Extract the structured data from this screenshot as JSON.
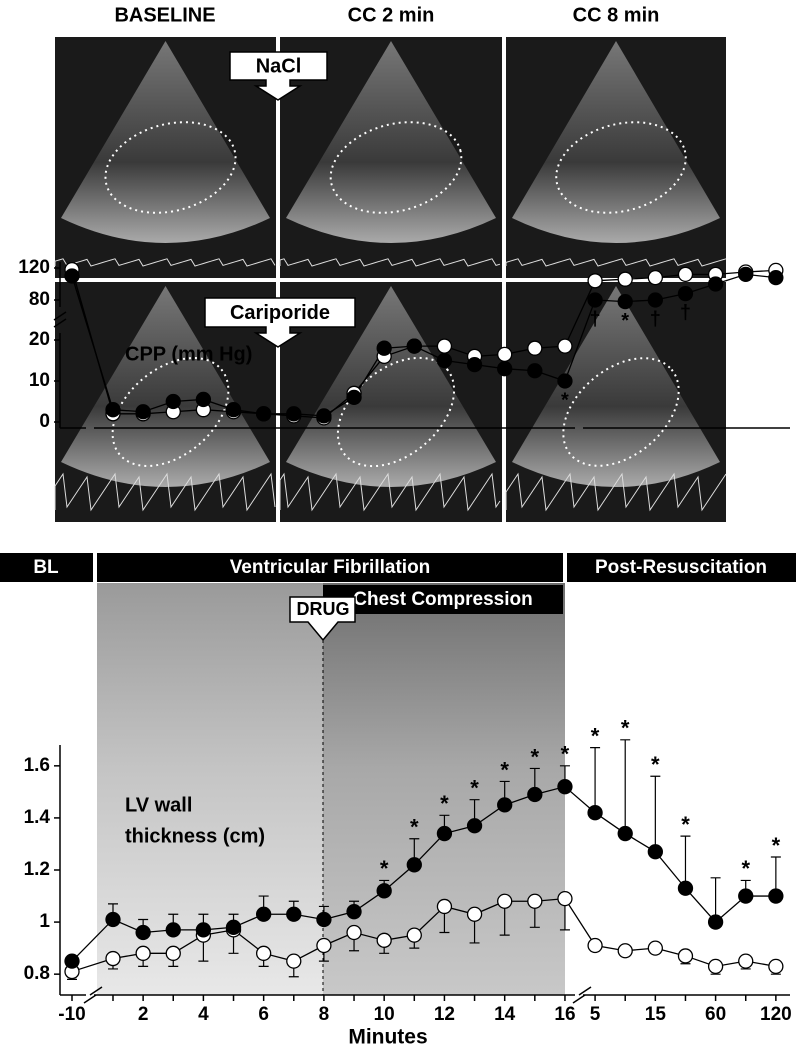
{
  "echo": {
    "columns": [
      "BASELINE",
      "CC 2 min",
      "CC 8 min"
    ],
    "rows": [
      "NaCl",
      "Cariporide"
    ]
  },
  "phases": {
    "baseline": "BL",
    "vf": "Ventricular Fibrillation",
    "cc": "Chest Compression",
    "post": "Post-Resuscitation",
    "drug": "DRUG"
  },
  "chart_data": [
    {
      "type": "line",
      "y_label": "CPP (mm Hg)",
      "y_segments": [
        {
          "ylim": [
            0,
            20
          ],
          "yticks": [
            0,
            10,
            20
          ]
        },
        {
          "ylim": [
            80,
            120
          ],
          "yticks": [
            80,
            120
          ]
        }
      ],
      "series": [
        {
          "color": "#000000",
          "values": [
            110,
            3,
            2.5,
            5,
            5.5,
            3,
            2,
            2,
            1.5,
            6,
            18,
            18.5,
            15,
            14,
            13,
            12.5,
            10,
            80,
            78,
            80,
            88,
            100,
            112,
            108
          ]
        },
        {
          "color": "#ffffff",
          "values": [
            118,
            2,
            2,
            2.5,
            3,
            2.5,
            2,
            1.5,
            1,
            7,
            16,
            18.5,
            18.5,
            16,
            16.5,
            18,
            18.5,
            104,
            106,
            108,
            112,
            112,
            115,
            117
          ]
        }
      ],
      "significance": [
        null,
        null,
        null,
        null,
        null,
        null,
        null,
        null,
        null,
        null,
        null,
        null,
        null,
        null,
        null,
        null,
        "*",
        "†",
        "*",
        "†",
        "†",
        null,
        null,
        null
      ]
    },
    {
      "type": "line",
      "y_label": [
        "LV wall",
        "thickness (cm)"
      ],
      "x_label": "Minutes",
      "categories": [
        "-10",
        null,
        "2",
        null,
        "4",
        null,
        "6",
        null,
        "8",
        null,
        "10",
        null,
        "12",
        null,
        "14",
        null,
        "16",
        "5",
        null,
        "15",
        null,
        "60",
        null,
        "120"
      ],
      "ylim": [
        0.72,
        1.68
      ],
      "yticks": [
        0.8,
        1.0,
        1.2,
        1.4,
        1.6
      ],
      "series": [
        {
          "color": "#000000",
          "values": [
            0.85,
            1.01,
            0.96,
            0.97,
            0.97,
            0.98,
            1.03,
            1.03,
            1.01,
            1.04,
            1.12,
            1.22,
            1.34,
            1.37,
            1.45,
            1.49,
            1.52,
            1.42,
            1.34,
            1.27,
            1.13,
            1.0,
            1.1,
            1.1
          ],
          "errors": [
            0.02,
            0.06,
            0.05,
            0.06,
            0.06,
            0.05,
            0.07,
            0.05,
            0.05,
            0.04,
            0.04,
            0.1,
            0.07,
            0.1,
            0.09,
            0.1,
            0.08,
            0.25,
            0.36,
            0.29,
            0.2,
            0.17,
            0.06,
            0.15
          ]
        },
        {
          "color": "#ffffff",
          "values": [
            0.81,
            0.86,
            0.88,
            0.88,
            0.95,
            0.97,
            0.88,
            0.85,
            0.91,
            0.96,
            0.93,
            0.95,
            1.06,
            1.03,
            1.08,
            1.08,
            1.09,
            0.91,
            0.89,
            0.9,
            0.87,
            0.83,
            0.85,
            0.83
          ],
          "errors": [
            0.03,
            0.04,
            0.05,
            0.05,
            0.1,
            0.09,
            0.05,
            0.06,
            0.06,
            0.07,
            0.05,
            0.05,
            0.1,
            0.11,
            0.13,
            0.1,
            0.12,
            0.02,
            0.02,
            0.02,
            0.03,
            0.03,
            0.03,
            0.03
          ]
        }
      ],
      "significance": [
        null,
        null,
        null,
        null,
        null,
        null,
        null,
        null,
        null,
        null,
        "*",
        "*",
        "*",
        "*",
        "*",
        "*",
        "*",
        "*",
        "*",
        "*",
        "*",
        null,
        "*",
        "*"
      ]
    }
  ]
}
